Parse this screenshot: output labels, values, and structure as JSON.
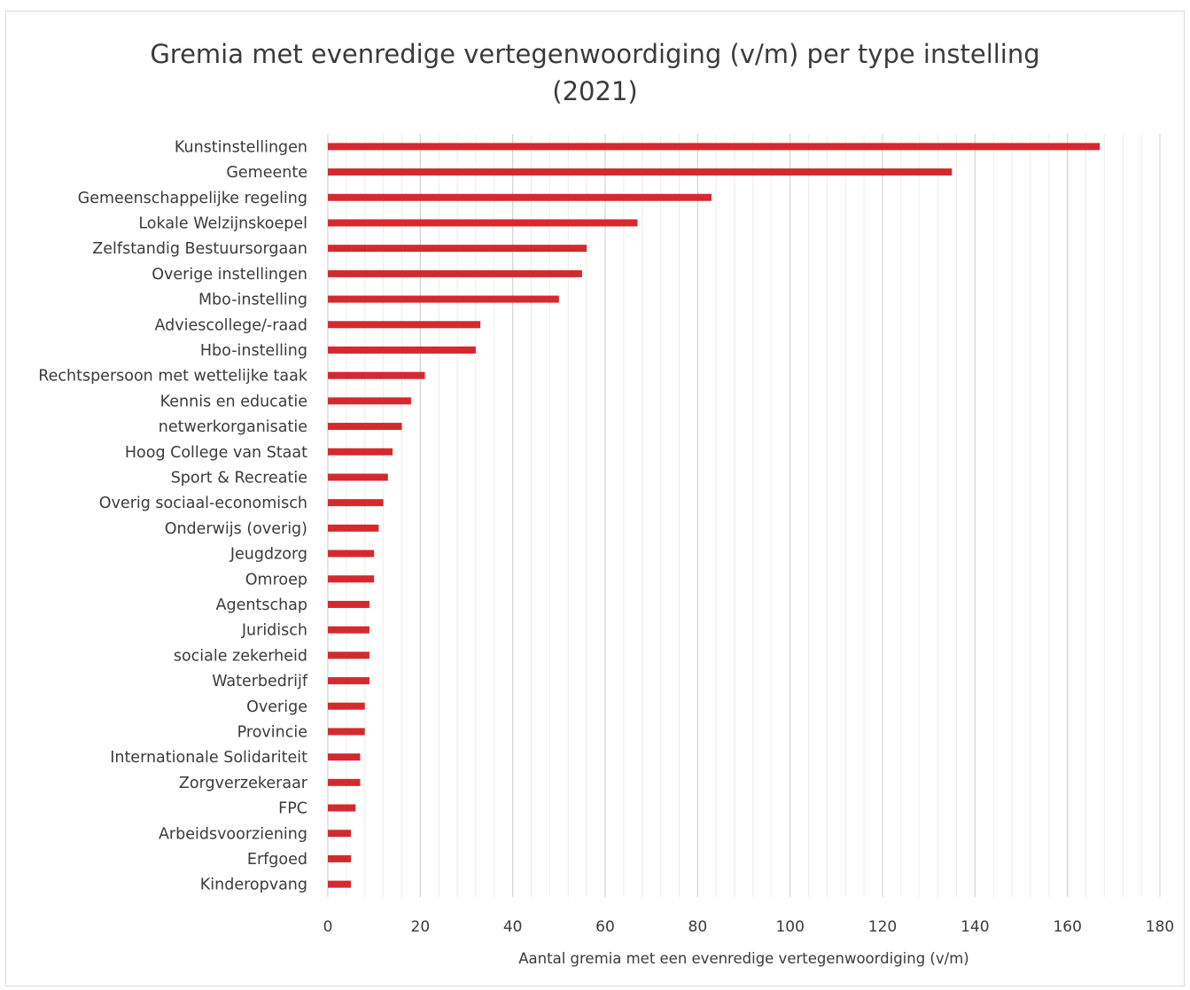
{
  "chart_data": {
    "type": "bar",
    "orientation": "horizontal",
    "title_line1": "Gremia met evenredige vertegenwoordiging (v/m) per type instelling",
    "title_line2": "(2021)",
    "xlabel": "Aantal gremia met een evenredige vertegenwoordiging (v/m)",
    "ylabel": "",
    "xlim": [
      0,
      180
    ],
    "x_ticks": [
      0,
      20,
      40,
      60,
      80,
      100,
      120,
      140,
      160,
      180
    ],
    "grid": "vertical, major and minor",
    "legend": "none",
    "bar_color": "#d42a2f",
    "categories": [
      "Kunstinstellingen",
      "Gemeente",
      "Gemeenschappelijke regeling",
      "Lokale Welzijnskoepel",
      "Zelfstandig Bestuursorgaan",
      "Overige instellingen",
      "Mbo-instelling",
      "Adviescollege/-raad",
      "Hbo-instelling",
      "Rechtspersoon met wettelijke taak",
      "Kennis en educatie",
      "netwerkorganisatie",
      "Hoog College van Staat",
      "Sport & Recreatie",
      "Overig sociaal-economisch",
      "Onderwijs (overig)",
      "Jeugdzorg",
      "Omroep",
      "Agentschap",
      "Juridisch",
      "sociale zekerheid",
      "Waterbedrijf",
      "Overige",
      "Provincie",
      "Internationale Solidariteit",
      "Zorgverzekeraar",
      "FPC",
      "Arbeidsvoorziening",
      "Erfgoed",
      "Kinderopvang"
    ],
    "values": [
      167,
      135,
      83,
      67,
      56,
      55,
      50,
      33,
      32,
      21,
      18,
      16,
      14,
      13,
      12,
      11,
      10,
      10,
      9,
      9,
      9,
      9,
      8,
      8,
      7,
      7,
      6,
      5,
      5,
      5
    ]
  }
}
